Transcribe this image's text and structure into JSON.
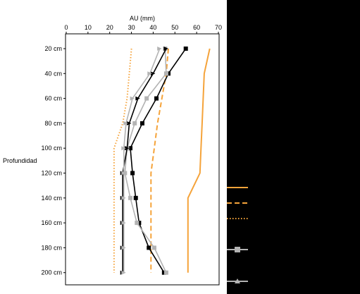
{
  "chart_data": {
    "type": "line",
    "orientation": "vertical-profile",
    "xlabel": "AU (mm)",
    "x_axis_position": "top",
    "xlim": [
      0,
      70
    ],
    "x_ticks": [
      "0",
      "10",
      "20",
      "30",
      "40",
      "50",
      "60",
      "70"
    ],
    "ylabel": "Profundidad",
    "categories": [
      "20 cm",
      "40 cm",
      "60 cm",
      "80 cm",
      "100 cm",
      "120 cm",
      "140 cm",
      "160 cm",
      "180 cm",
      "200 cm"
    ],
    "grid": false,
    "legend": "right (series names not legible)",
    "series": [
      {
        "style": "orange-solid",
        "color": "#f5a33a",
        "marker": "none",
        "values": [
          66,
          63.5,
          63,
          62.5,
          62,
          61.5,
          56,
          56,
          56,
          56
        ]
      },
      {
        "style": "orange-dashed",
        "color": "#f5a33a",
        "marker": "none",
        "values": [
          47,
          46,
          44,
          42,
          40.5,
          39,
          39,
          39,
          39,
          39
        ]
      },
      {
        "style": "orange-dotted",
        "color": "#f5a33a",
        "marker": "none",
        "values": [
          30,
          29,
          28,
          26,
          22,
          22,
          22,
          22,
          22,
          22
        ]
      },
      {
        "style": "black-square",
        "color": "#000000",
        "marker": "square",
        "values": [
          55,
          47,
          41.5,
          35,
          29.5,
          30.5,
          32,
          33.5,
          38,
          45
        ]
      },
      {
        "style": "gray-square",
        "color": "#b3b3b3",
        "marker": "square",
        "values": [
          45.5,
          46,
          37,
          31.5,
          28,
          27,
          29.5,
          32.5,
          40.5,
          46
        ]
      },
      {
        "style": "black-triangle",
        "color": "#000000",
        "marker": "triangle",
        "values": [
          46,
          40,
          33,
          29,
          28,
          26,
          26,
          26,
          26,
          26
        ]
      },
      {
        "style": "gray-triangle",
        "color": "#b3b3b3",
        "marker": "triangle",
        "values": [
          43,
          38.5,
          30.5,
          27.5,
          26.5,
          26.5,
          26.5,
          26.5,
          26.5,
          26.5
        ]
      }
    ]
  }
}
